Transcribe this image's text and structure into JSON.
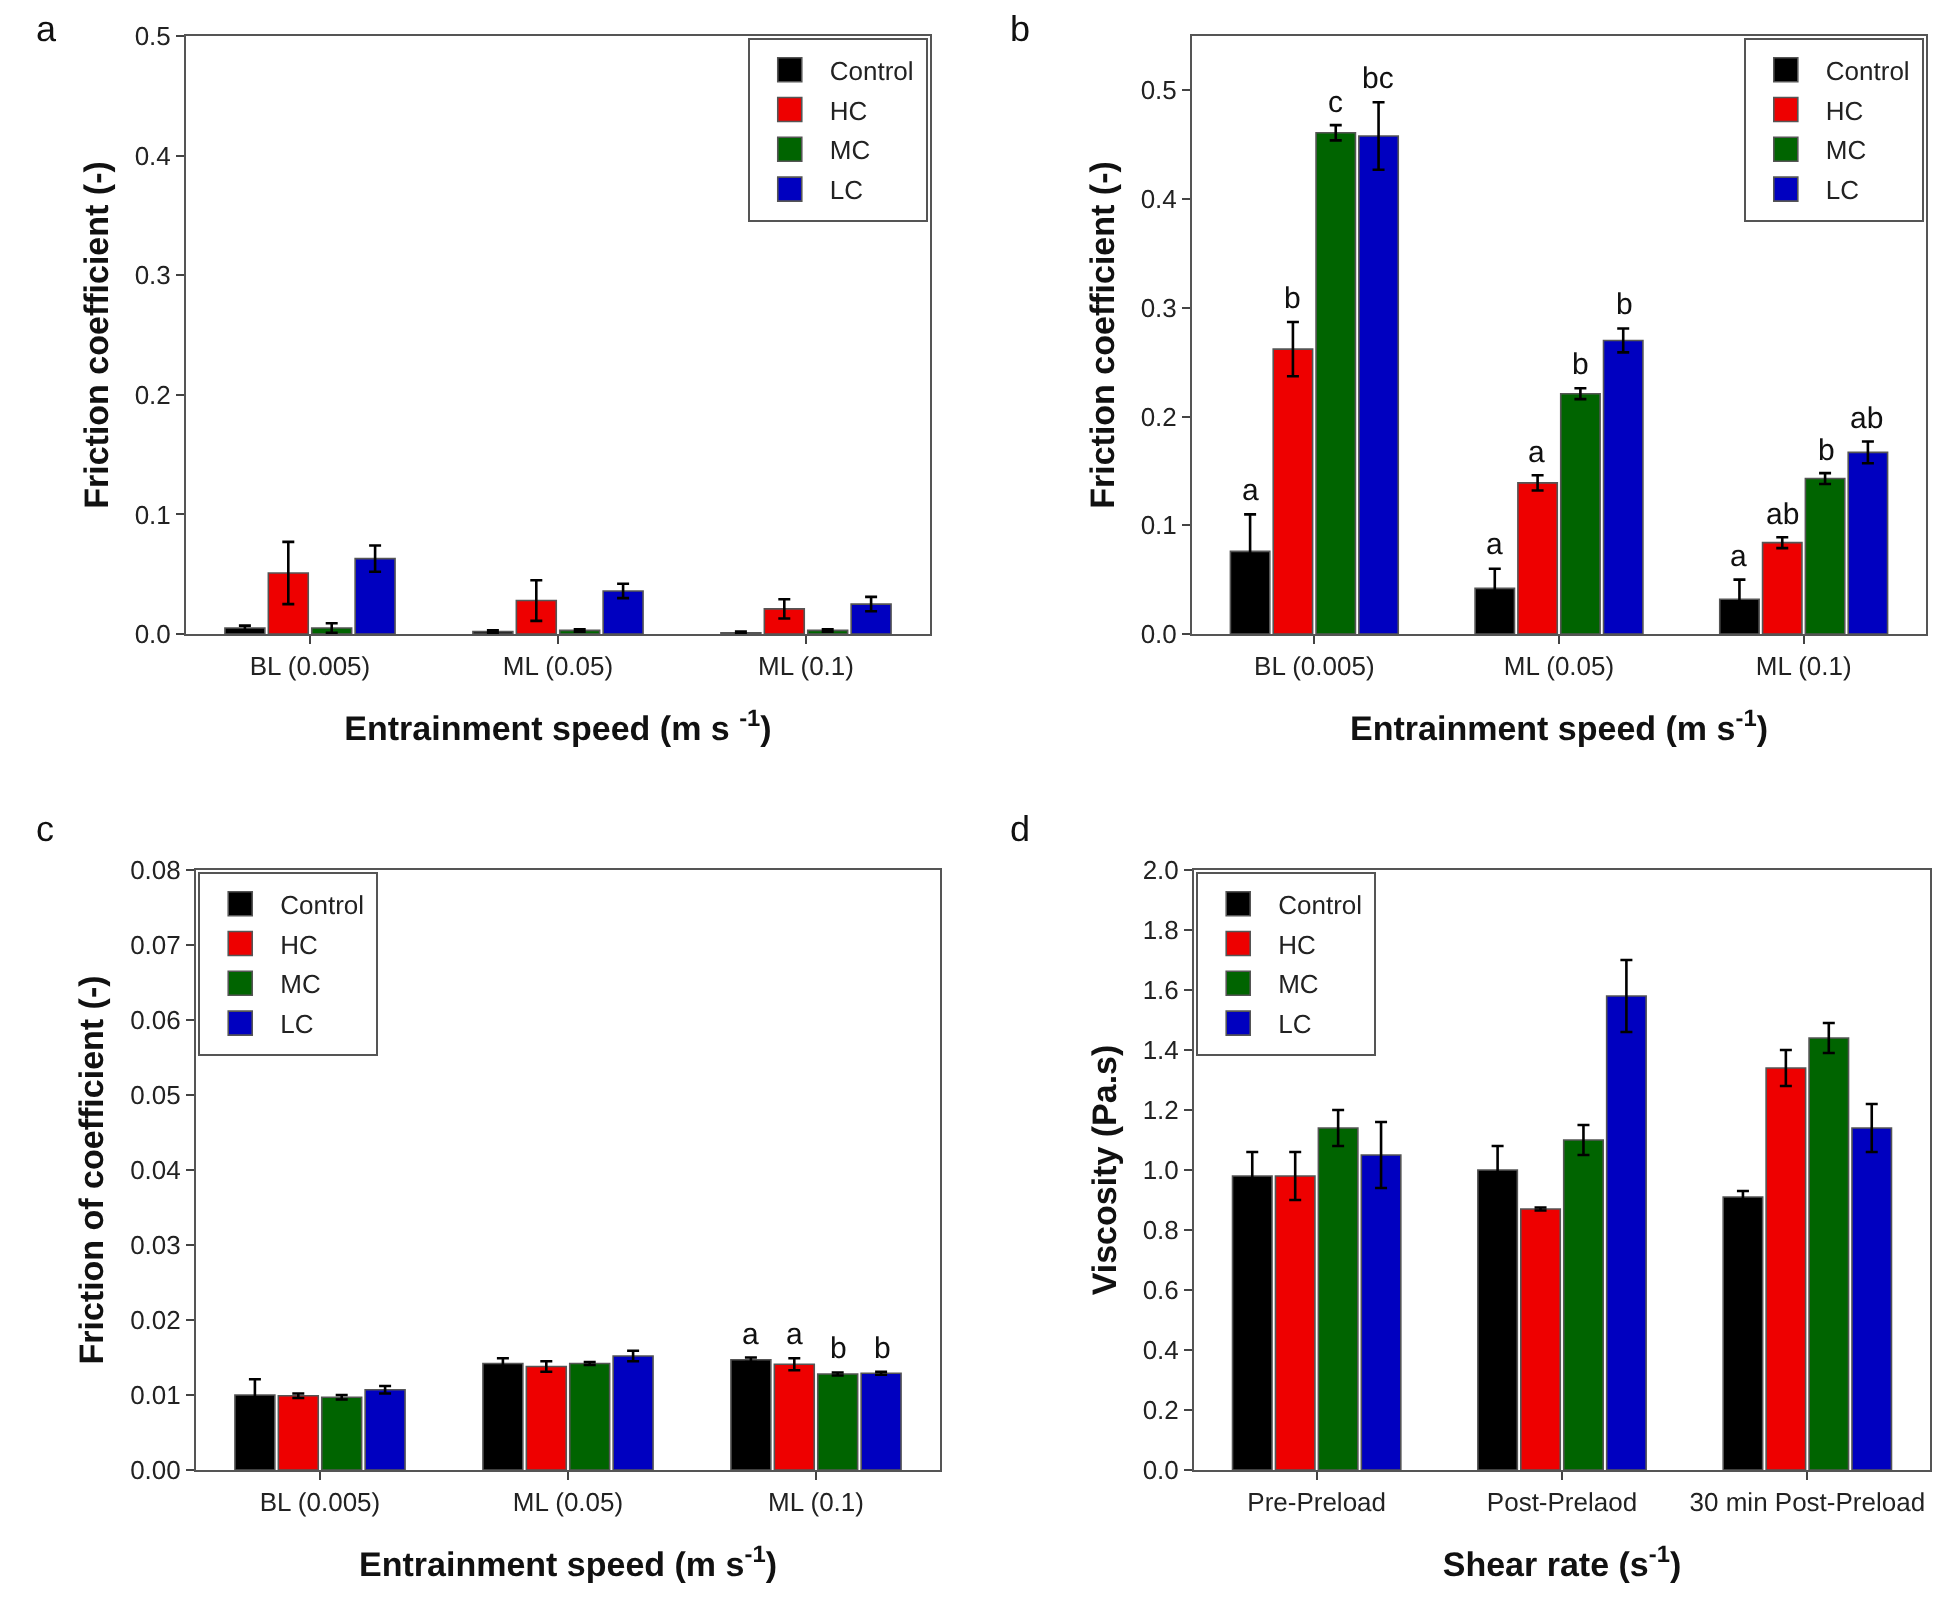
{
  "chart_data": [
    {
      "type": "bar",
      "title": "a",
      "xlabel": "Entrainment speed (m s $^{-1}$)",
      "ylabel": "Friction coefficient (-)",
      "categories": [
        "BL (0.005)",
        "ML (0.05)",
        "ML (0.1)"
      ],
      "ylim": [
        0,
        0.5
      ],
      "yticks": [
        {
          "value": 0,
          "label": "0.0"
        },
        0.1,
        0.2,
        0.3,
        0.4,
        0.5
      ],
      "legend": "top right",
      "series": [
        {
          "name": "Control",
          "color": "#000000",
          "values": [
            0.005,
            0.002,
            0.001
          ],
          "errors": [
            0.002,
            0.001,
            0.001
          ]
        },
        {
          "name": "HC",
          "color": "#ee0000",
          "values": [
            0.051,
            0.028,
            0.021
          ],
          "errors": [
            0.026,
            0.017,
            0.008
          ]
        },
        {
          "name": "MC",
          "color": "#006400",
          "values": [
            0.005,
            0.003,
            0.003
          ],
          "errors": [
            0.004,
            0.001,
            0.001
          ]
        },
        {
          "name": "LC",
          "color": "#0000c0",
          "values": [
            0.063,
            0.036,
            0.025
          ],
          "errors": [
            0.011,
            0.006,
            0.006
          ]
        }
      ]
    },
    {
      "type": "bar",
      "title": "b",
      "xlabel": "Entrainment speed (m s$^{-1}$)",
      "ylabel": "Friction coefficient (-)",
      "categories": [
        "BL (0.005)",
        "ML (0.05)",
        "ML (0.1)"
      ],
      "ylim": [
        0,
        0.55
      ],
      "yticks": [
        {
          "value": 0,
          "label": "0.0"
        },
        0.1,
        0.2,
        0.3,
        0.4,
        0.5
      ],
      "legend": "top right",
      "series": [
        {
          "name": "Control",
          "color": "#000000",
          "values": [
            0.076,
            0.042,
            0.032
          ],
          "errors": [
            0.034,
            0.018,
            0.018
          ]
        },
        {
          "name": "HC",
          "color": "#ee0000",
          "values": [
            0.262,
            0.139,
            0.084
          ],
          "errors": [
            0.025,
            0.007,
            0.005
          ]
        },
        {
          "name": "MC",
          "color": "#006400",
          "values": [
            0.461,
            0.221,
            0.143
          ],
          "errors": [
            0.007,
            0.005,
            0.005
          ]
        },
        {
          "name": "LC",
          "color": "#0000c0",
          "values": [
            0.458,
            0.27,
            0.167
          ],
          "errors": [
            0.031,
            0.011,
            0.01
          ]
        }
      ],
      "annotations": [
        {
          "text": "a",
          "y": 0.076
        },
        {
          "text": "b",
          "y": 0.262
        },
        {
          "text": "c",
          "y": 0.461
        },
        {
          "text": "bc",
          "y": 0.458
        },
        {
          "text": "a",
          "y": 0.042
        },
        {
          "text": "a",
          "y": 0.139
        },
        {
          "text": "b",
          "y": 0.221
        },
        {
          "text": "b",
          "y": 0.27
        },
        {
          "text": "a",
          "y": 0.032
        },
        {
          "text": "ab",
          "y": 0.084
        },
        {
          "text": "b",
          "y": 0.143
        },
        {
          "text": "ab",
          "y": 0.167
        }
      ]
    },
    {
      "type": "bar",
      "title": "c",
      "xlabel": "Entrainment speed (m s$^{-1}$)",
      "ylabel": "Friction of coefficient (-)",
      "categories": [
        "BL (0.005)",
        "ML (0.05)",
        "ML (0.1)"
      ],
      "ylim": [
        0,
        0.08
      ],
      "yticks": [
        {
          "value": 0,
          "label": "0.00"
        },
        0.01,
        0.02,
        0.03,
        0.04,
        0.05,
        0.06,
        0.07,
        0.08
      ],
      "legend": "top left",
      "series": [
        {
          "name": "Control",
          "color": "#000000",
          "values": [
            0.01,
            0.0142,
            0.0147
          ],
          "errors": [
            0.0021,
            0.0007,
            0.0003
          ]
        },
        {
          "name": "HC",
          "color": "#ee0000",
          "values": [
            0.0099,
            0.0138,
            0.0141
          ],
          "errors": [
            0.0003,
            0.0007,
            0.0008
          ]
        },
        {
          "name": "MC",
          "color": "#006400",
          "values": [
            0.0097,
            0.0142,
            0.0128
          ],
          "errors": [
            0.0003,
            0.0002,
            0.0002
          ]
        },
        {
          "name": "LC",
          "color": "#0000c0",
          "values": [
            0.0107,
            0.0152,
            0.0129
          ],
          "errors": [
            0.0005,
            0.0007,
            0.0002
          ]
        }
      ],
      "annotations": [
        {
          "text": "a",
          "y": 0.0147
        },
        {
          "text": "a",
          "y": 0.0141
        },
        {
          "text": "b",
          "y": 0.0128
        },
        {
          "text": "b",
          "y": 0.0129
        }
      ]
    },
    {
      "type": "bar",
      "title": "d",
      "xlabel": "Shear rate (s$^{-1}$)",
      "ylabel": "Viscosity (Pa.s)",
      "categories": [
        "Pre-Preload",
        "Post-Prelaod",
        "30 min Post-Preload"
      ],
      "ylim": [
        0,
        2.0
      ],
      "yticks": [
        {
          "value": 0,
          "label": "0.0"
        },
        0.2,
        0.4,
        0.6,
        0.8,
        {
          "value": 1.0,
          "label": "1.0"
        },
        1.2,
        1.4,
        1.6,
        1.8,
        {
          "value": 2.0,
          "label": "2.0"
        }
      ],
      "legend": "top left",
      "series": [
        {
          "name": "Control",
          "color": "#000000",
          "values": [
            0.98,
            1.0,
            0.91
          ],
          "errors": [
            0.08,
            0.08,
            0.02
          ]
        },
        {
          "name": "HC",
          "color": "#ee0000",
          "values": [
            0.98,
            0.87,
            1.34
          ],
          "errors": [
            0.08,
            0.005,
            0.06
          ]
        },
        {
          "name": "MC",
          "color": "#006400",
          "values": [
            1.14,
            1.1,
            1.44
          ],
          "errors": [
            0.06,
            0.05,
            0.05
          ]
        },
        {
          "name": "LC",
          "color": "#0000c0",
          "values": [
            1.05,
            1.58,
            1.14
          ],
          "errors": [
            0.11,
            0.12,
            0.08
          ]
        }
      ]
    }
  ]
}
